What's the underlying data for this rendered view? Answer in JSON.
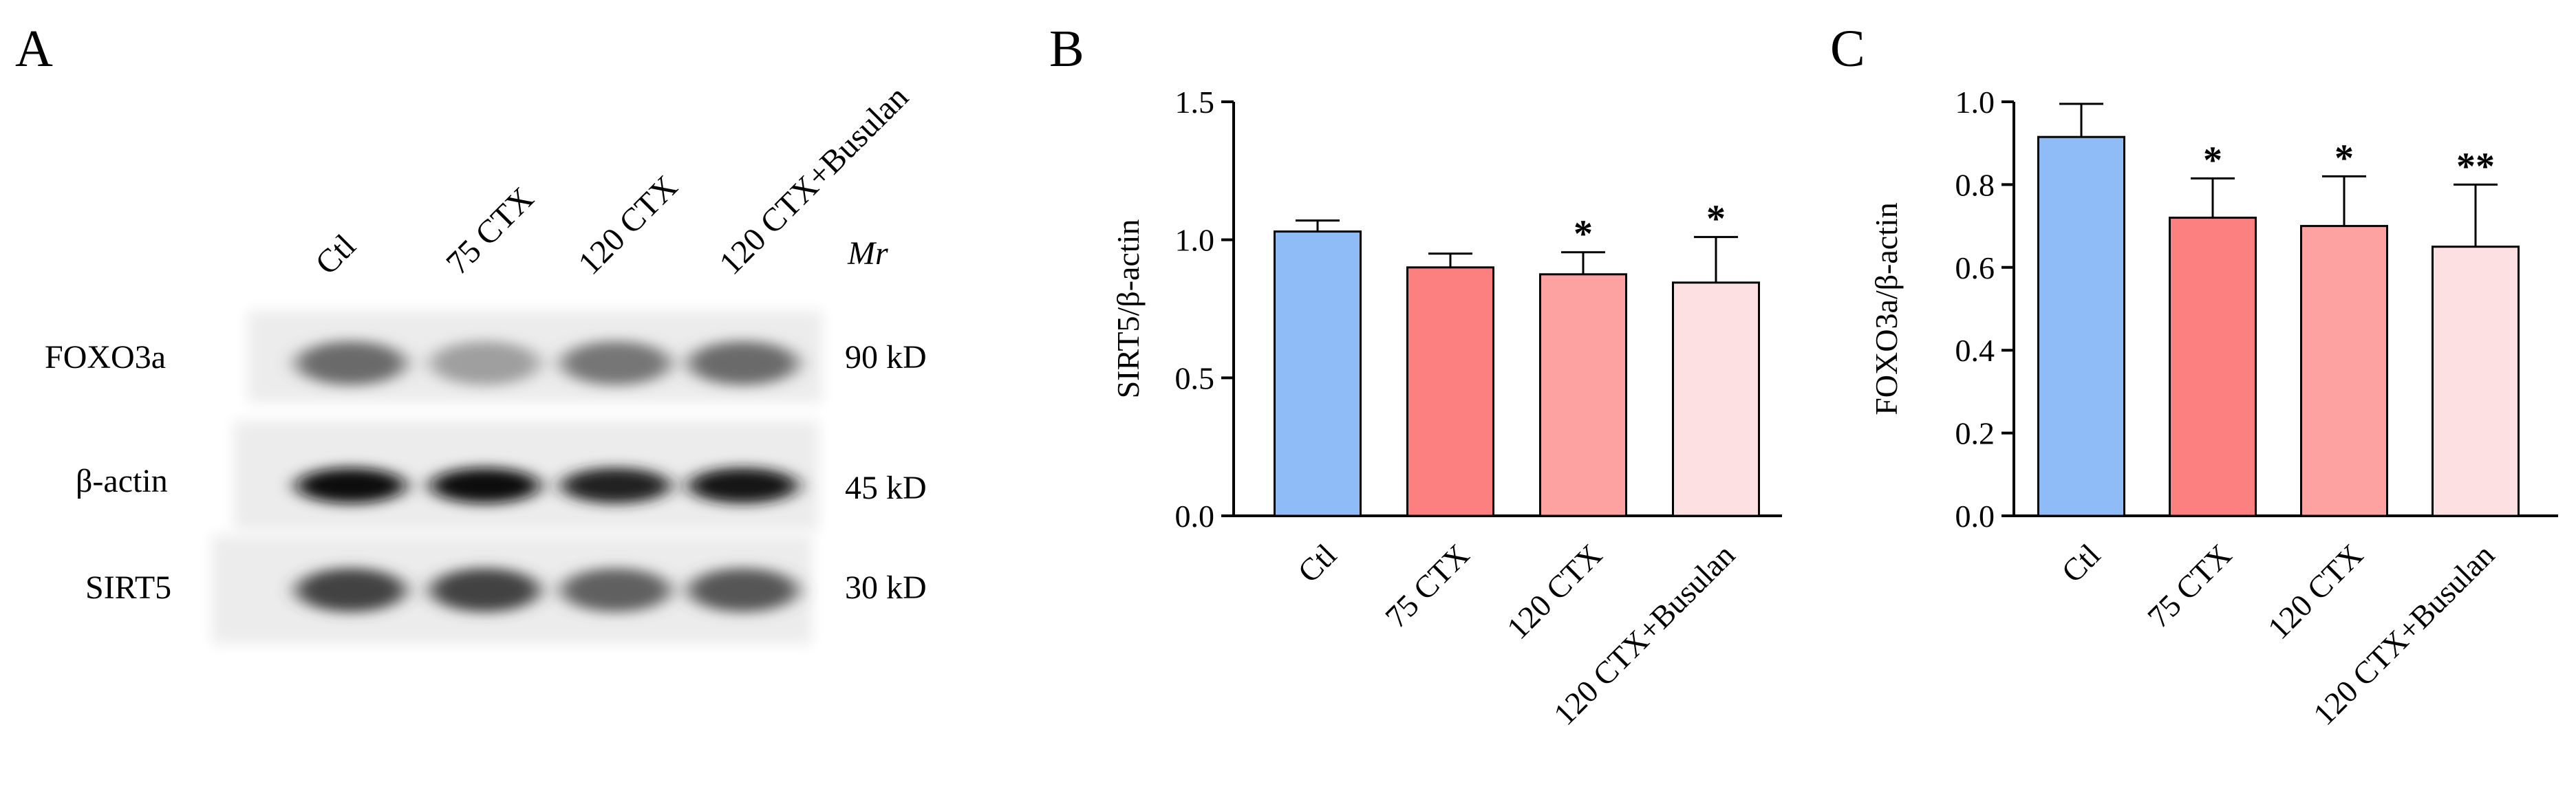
{
  "panels": {
    "a": {
      "letter": "A",
      "lane_labels": [
        "Ctl",
        "75 CTX",
        "120 CTX",
        "120 CTX+Busulan"
      ],
      "mr_header": "Mr",
      "rows": [
        {
          "label": "FOXO3a",
          "mr": "90 kD",
          "band_intensity": [
            0.55,
            0.3,
            0.5,
            0.55
          ]
        },
        {
          "label": "β-actin",
          "mr": "45 kD",
          "band_intensity": [
            1.0,
            1.0,
            0.9,
            0.95
          ]
        },
        {
          "label": "SIRT5",
          "mr": "30 kD",
          "band_intensity": [
            0.75,
            0.75,
            0.6,
            0.65
          ]
        }
      ]
    },
    "b": {
      "letter": "B"
    },
    "c": {
      "letter": "C"
    }
  },
  "colors": {
    "ctl": "#8fbcf6",
    "ctx75": "#fd8081",
    "ctx120": "#fea1a1",
    "busulan": "#fde0e2"
  },
  "chart_data": [
    {
      "type": "bar",
      "categories": [
        "Ctl",
        "75 CTX",
        "120 CTX",
        "120 CTX+Busulan"
      ],
      "values": [
        1.03,
        0.9,
        0.875,
        0.845
      ],
      "errors": [
        0.04,
        0.05,
        0.08,
        0.165
      ],
      "significance": [
        "",
        "",
        "*",
        "*"
      ],
      "ylabel": "SIRT5/β-actin",
      "ylim": [
        0,
        1.5
      ],
      "yticks": [
        0.0,
        0.5,
        1.0,
        1.5
      ],
      "yticklabels": [
        "0.0",
        "0.5",
        "1.0",
        "1.5"
      ],
      "grid": false
    },
    {
      "type": "bar",
      "categories": [
        "Ctl",
        "75 CTX",
        "120 CTX",
        "120 CTX+Busulan"
      ],
      "values": [
        0.915,
        0.72,
        0.7,
        0.65
      ],
      "errors": [
        0.08,
        0.095,
        0.12,
        0.15
      ],
      "significance": [
        "",
        "*",
        "*",
        "**"
      ],
      "ylabel": "FOXO3a/β-actin",
      "ylim": [
        0,
        1.0
      ],
      "yticks": [
        0.0,
        0.2,
        0.4,
        0.6,
        0.8,
        1.0
      ],
      "yticklabels": [
        "0.0",
        "0.2",
        "0.4",
        "0.6",
        "0.8",
        "1.0"
      ],
      "grid": false
    }
  ]
}
